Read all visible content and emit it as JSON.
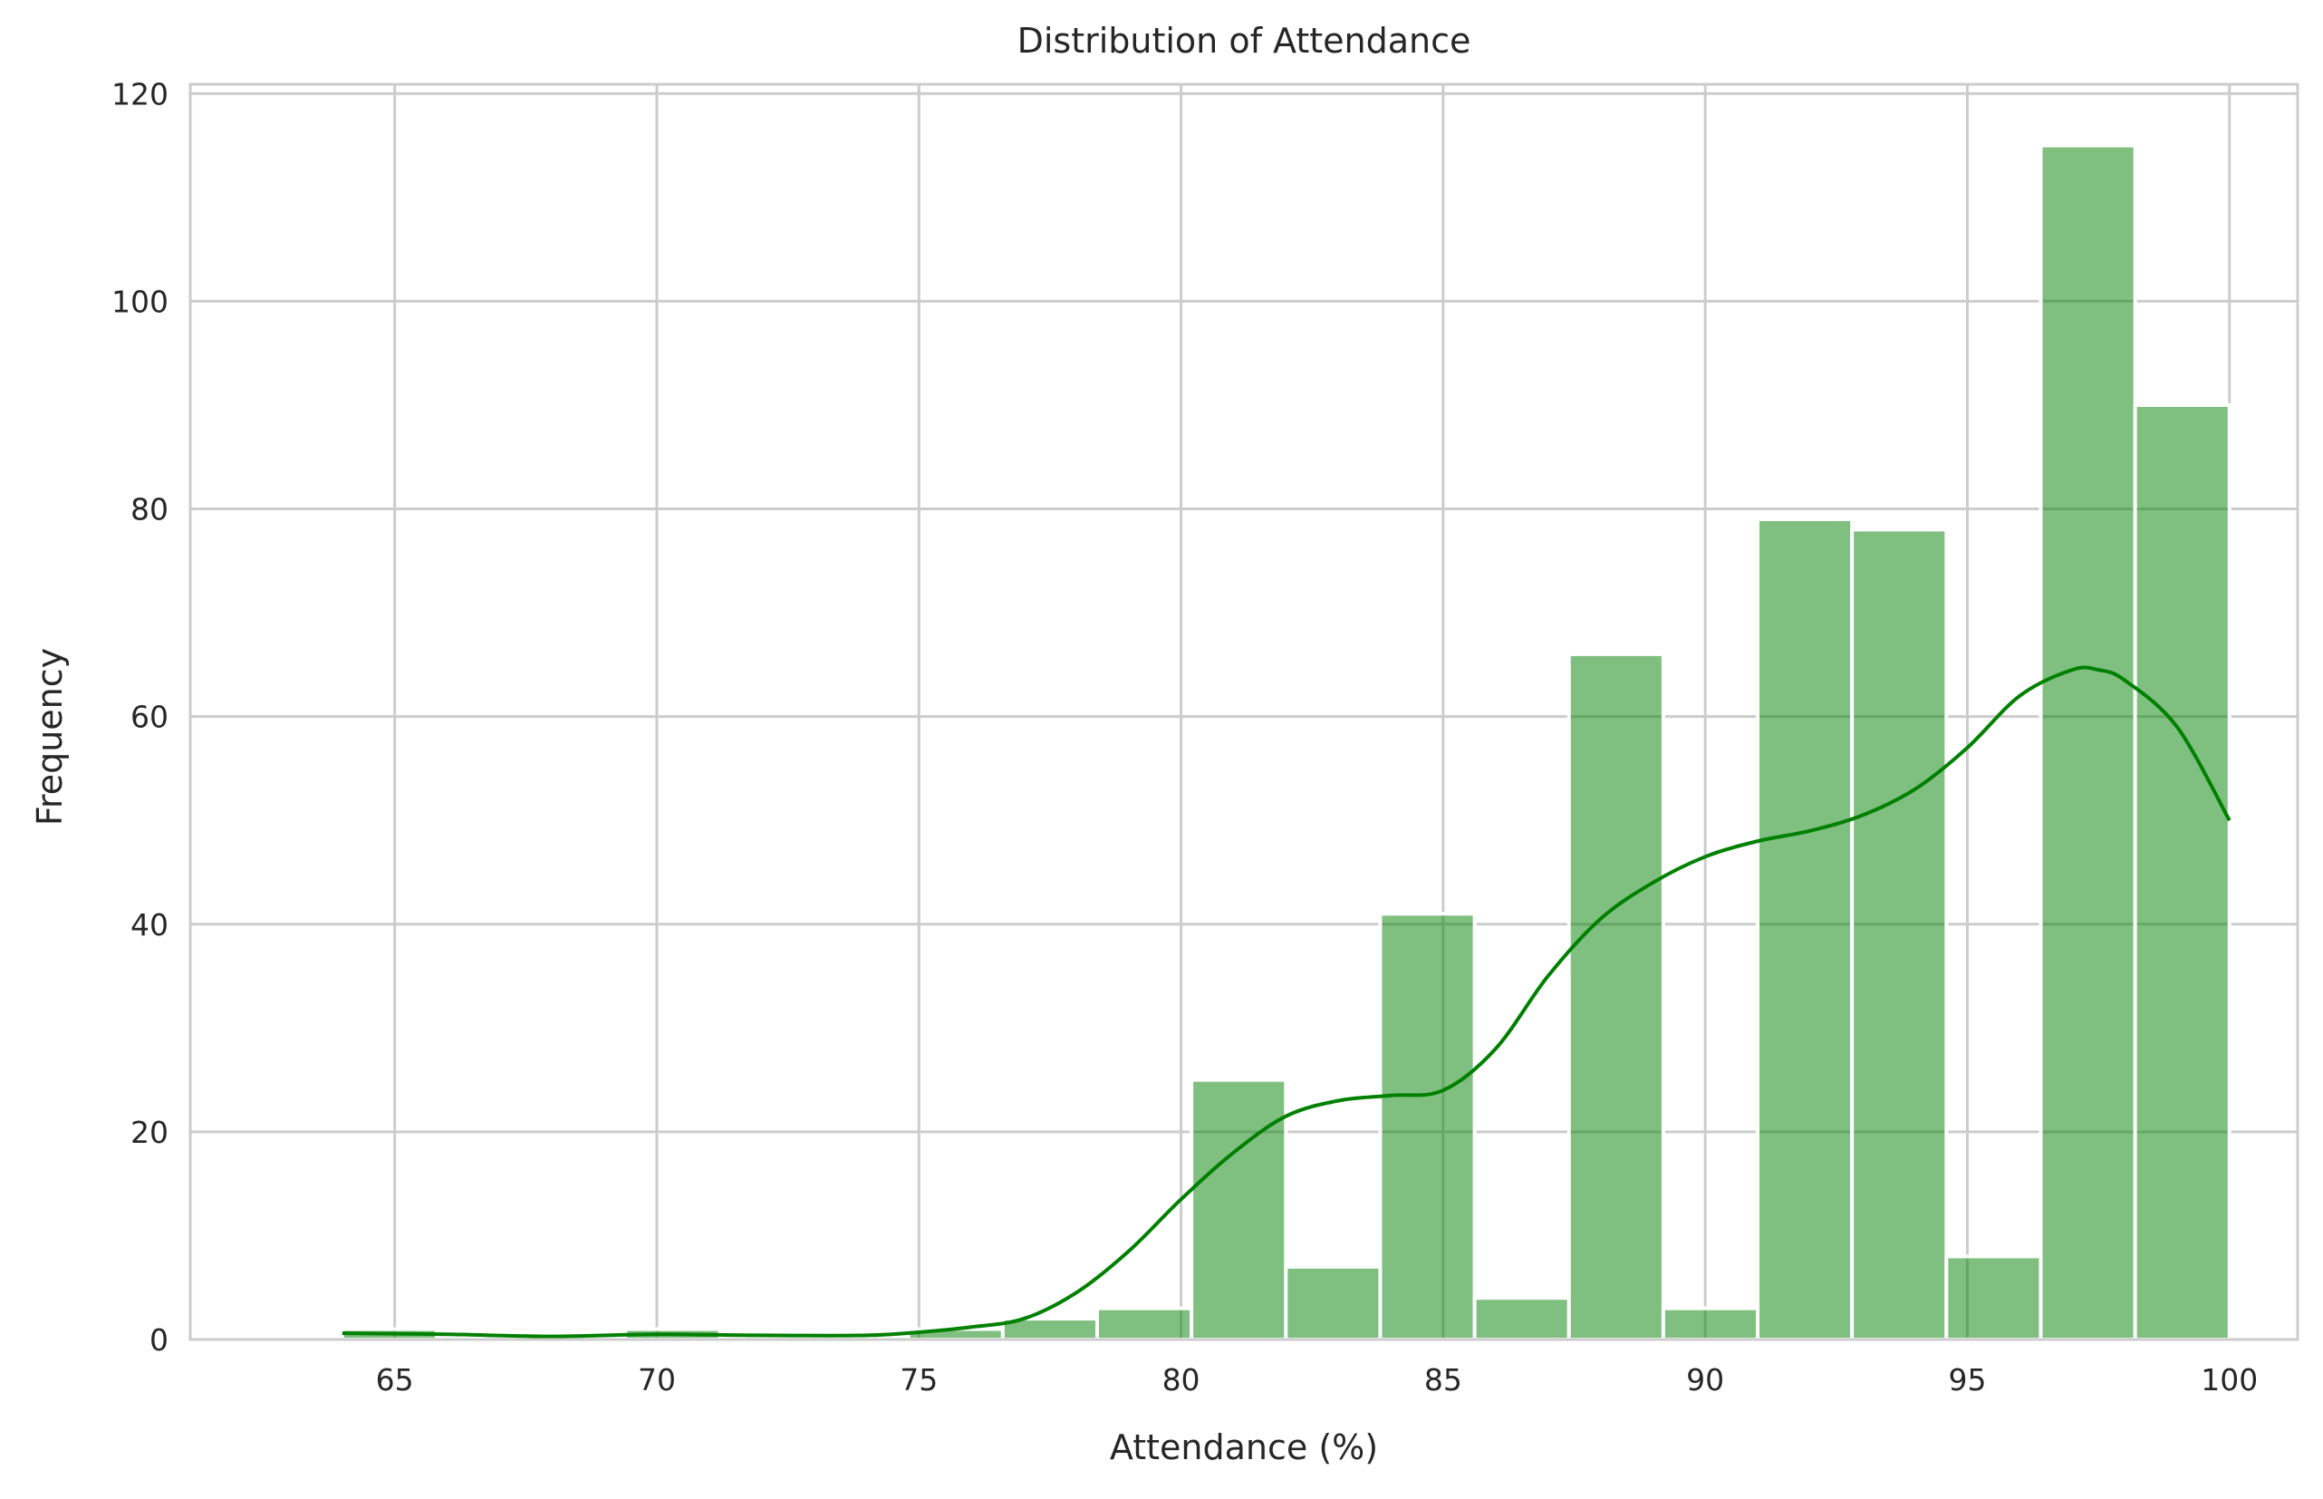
{
  "chart_data": {
    "type": "bar",
    "title": "Distribution of Attendance",
    "xlabel": "Attendance (%)",
    "ylabel": "Frequency",
    "xlim": [
      61.1,
      101.3
    ],
    "ylim": [
      0,
      120.9
    ],
    "xticks": [
      65,
      70,
      75,
      80,
      85,
      90,
      95,
      100
    ],
    "yticks": [
      0,
      20,
      40,
      60,
      80,
      100,
      120
    ],
    "grid": true,
    "bar_color": "#008000",
    "bar_opacity": 0.5,
    "line_color": "#008000",
    "bins": [
      {
        "x0": 64.0,
        "x1": 65.8,
        "count": 1
      },
      {
        "x0": 65.8,
        "x1": 67.6,
        "count": 0
      },
      {
        "x0": 67.6,
        "x1": 69.4,
        "count": 0
      },
      {
        "x0": 69.4,
        "x1": 71.2,
        "count": 1
      },
      {
        "x0": 71.2,
        "x1": 73.0,
        "count": 0
      },
      {
        "x0": 73.0,
        "x1": 74.8,
        "count": 0
      },
      {
        "x0": 74.8,
        "x1": 76.6,
        "count": 1
      },
      {
        "x0": 76.6,
        "x1": 78.4,
        "count": 2
      },
      {
        "x0": 78.4,
        "x1": 80.2,
        "count": 3
      },
      {
        "x0": 80.2,
        "x1": 82.0,
        "count": 25
      },
      {
        "x0": 82.0,
        "x1": 83.8,
        "count": 7
      },
      {
        "x0": 83.8,
        "x1": 85.6,
        "count": 41
      },
      {
        "x0": 85.6,
        "x1": 87.4,
        "count": 4
      },
      {
        "x0": 87.4,
        "x1": 89.2,
        "count": 66
      },
      {
        "x0": 89.2,
        "x1": 91.0,
        "count": 3
      },
      {
        "x0": 91.0,
        "x1": 92.8,
        "count": 79
      },
      {
        "x0": 92.8,
        "x1": 94.6,
        "count": 78
      },
      {
        "x0": 94.6,
        "x1": 96.4,
        "count": 8
      },
      {
        "x0": 96.4,
        "x1": 98.2,
        "count": 115
      },
      {
        "x0": 98.2,
        "x1": 100.0,
        "count": 90
      }
    ],
    "kde": {
      "x": [
        64,
        66,
        68,
        70,
        72,
        74,
        75,
        76,
        77,
        78,
        79,
        80,
        81,
        82,
        83,
        84,
        85,
        86,
        87,
        88,
        89,
        90,
        91,
        92,
        93,
        94,
        95,
        96,
        97,
        97.5,
        98,
        99,
        100
      ],
      "y": [
        0.6,
        0.5,
        0.3,
        0.5,
        0.4,
        0.4,
        0.7,
        1.2,
        2.0,
        4.5,
        8.5,
        13.5,
        18.0,
        21.5,
        23.0,
        23.5,
        24.0,
        28.0,
        35.0,
        40.5,
        44.0,
        46.5,
        48.0,
        49.0,
        50.5,
        53.0,
        57.0,
        62.0,
        64.5,
        64.5,
        63.5,
        59.0,
        50.0
      ]
    }
  }
}
